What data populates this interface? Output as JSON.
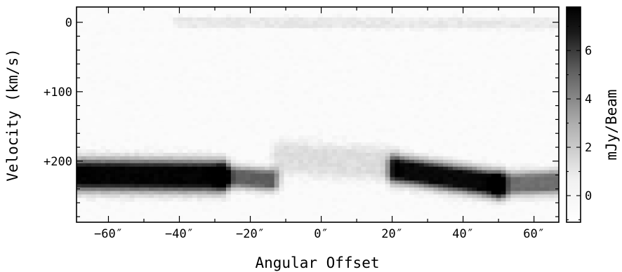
{
  "chart_data": {
    "type": "heatmap",
    "title": "",
    "xlabel": "Angular Offset",
    "ylabel": "Velocity (km/s)",
    "xlim": [
      -69,
      67
    ],
    "ylim": [
      -22,
      288
    ],
    "y_inverted": true,
    "x_ticks": [
      {
        "value": -60,
        "label": "−60″"
      },
      {
        "value": -40,
        "label": "−40″"
      },
      {
        "value": -20,
        "label": "−20″"
      },
      {
        "value": 0,
        "label": "0″"
      },
      {
        "value": 20,
        "label": "20″"
      },
      {
        "value": 40,
        "label": "40″"
      },
      {
        "value": 60,
        "label": "60″"
      }
    ],
    "y_ticks": [
      {
        "value": 0,
        "label": "0"
      },
      {
        "value": 100,
        "label": "+100"
      },
      {
        "value": 200,
        "label": "+200"
      }
    ],
    "colorbar": {
      "label": "mJy/Beam",
      "range": [
        -1.1,
        7.8
      ],
      "ticks": [
        {
          "value": 0,
          "label": "0"
        },
        {
          "value": 2,
          "label": "2"
        },
        {
          "value": 4,
          "label": "4"
        },
        {
          "value": 6,
          "label": "6"
        }
      ],
      "colormap": "gray_r",
      "low_color": "#ffffff",
      "high_color": "#000000"
    },
    "emission_features": [
      {
        "name": "west-band",
        "x_start": -69,
        "x_end": -28,
        "v_start": 220,
        "v_end": 222,
        "v_width": 26,
        "peak": 7.6
      },
      {
        "name": "west-band-tail",
        "x_start": -28,
        "x_end": -14,
        "v_start": 222,
        "v_end": 227,
        "v_width": 18,
        "peak": 4.5
      },
      {
        "name": "east-band",
        "x_start": 21,
        "x_end": 50,
        "v_start": 212,
        "v_end": 234,
        "v_width": 22,
        "peak": 7.4
      },
      {
        "name": "east-band-tail",
        "x_start": 50,
        "x_end": 67,
        "v_start": 234,
        "v_end": 230,
        "v_width": 20,
        "peak": 4.0
      },
      {
        "name": "center-faint",
        "x_start": -12,
        "x_end": 20,
        "v_start": 195,
        "v_end": 205,
        "v_width": 30,
        "peak": 0.9
      },
      {
        "name": "zero-velocity-faint",
        "x_start": -40,
        "x_end": 67,
        "v_start": 0,
        "v_end": 2,
        "v_width": 10,
        "peak": 0.6
      }
    ]
  }
}
